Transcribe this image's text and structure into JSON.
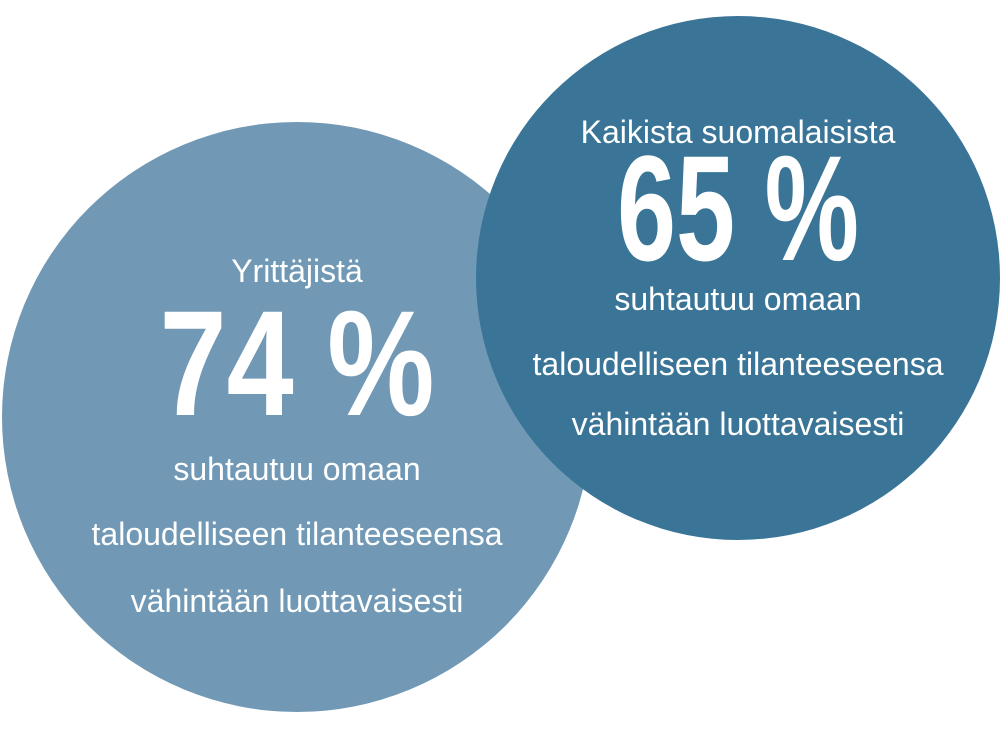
{
  "circles": [
    {
      "lead": "Yrittäjistä",
      "figure": "74 %",
      "lines": [
        "suhtautuu omaan",
        "taloudelliseen tilanteeseensa",
        "vähintään luottavaisesti"
      ]
    },
    {
      "lead": "Kaikista suomalaisista",
      "figure": "65 %",
      "lines": [
        "suhtautuu omaan",
        "taloudelliseen tilanteeseensa",
        "vähintään luottavaisesti"
      ]
    }
  ]
}
